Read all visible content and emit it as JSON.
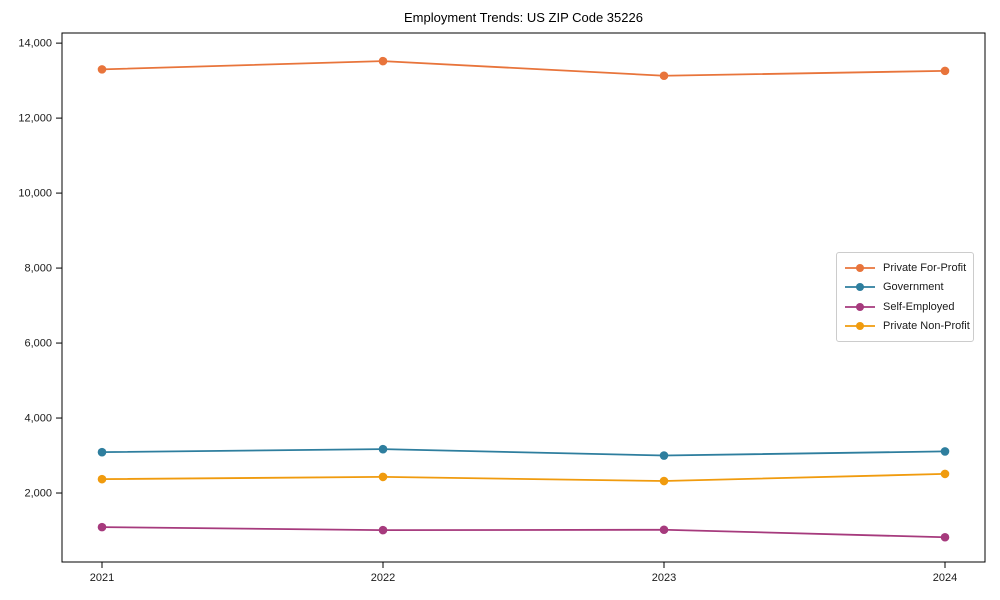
{
  "chart_data": {
    "type": "line",
    "title": "Employment Trends: US ZIP Code 35226",
    "categories": [
      "2021",
      "2022",
      "2023",
      "2024"
    ],
    "series": [
      {
        "name": "Private For-Profit",
        "color": "#e8743b",
        "values": [
          13300,
          13520,
          13130,
          13260
        ]
      },
      {
        "name": "Government",
        "color": "#2e7e9e",
        "values": [
          3090,
          3170,
          3000,
          3110
        ]
      },
      {
        "name": "Self-Employed",
        "color": "#a63a7d",
        "values": [
          1090,
          1010,
          1020,
          820
        ]
      },
      {
        "name": "Private Non-Profit",
        "color": "#f09b0e",
        "values": [
          2370,
          2430,
          2320,
          2510
        ]
      }
    ],
    "xlabel": "",
    "ylabel": "",
    "ylim": [
      160,
      14270
    ],
    "yticks": [
      2000,
      4000,
      6000,
      8000,
      10000,
      12000,
      14000
    ],
    "ytick_labels": [
      "2,000",
      "4,000",
      "6,000",
      "8,000",
      "10,000",
      "12,000",
      "14,000"
    ],
    "grid": false,
    "legend_position": "center-right",
    "marker": "circle",
    "background": "#ffffff",
    "axis_color": "#000000",
    "text_color": "#1a1a1a"
  }
}
